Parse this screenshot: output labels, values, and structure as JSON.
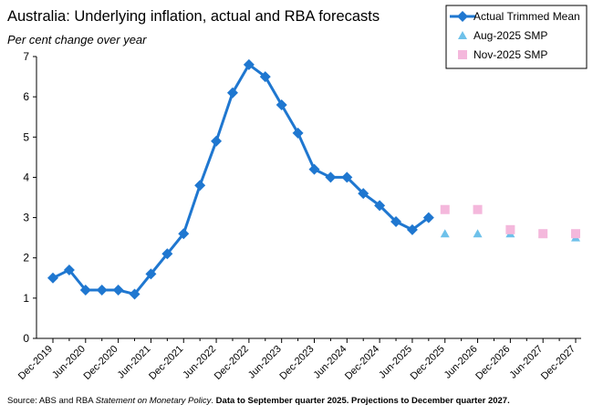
{
  "chart_data": {
    "type": "line",
    "title": "Australia: Underlying inflation, actual and RBA forecasts",
    "subtitle": "Per cent change over year",
    "source": [
      "Source: ABS and RBA ",
      "Statement on Monetary Policy",
      ". ",
      "Data to September quarter 2025. Projections to December quarter 2027."
    ],
    "categories": [
      "Dec-2019",
      null,
      "Jun-2020",
      null,
      "Dec-2020",
      null,
      "Jun-2021",
      null,
      "Dec-2021",
      null,
      "Jun-2022",
      null,
      "Dec-2022",
      null,
      "Jun-2023",
      null,
      "Dec-2023",
      null,
      "Jun-2024",
      null,
      "Dec-2024",
      null,
      "Jun-2025",
      null,
      "Dec-2025",
      null,
      "Jun-2026",
      null,
      "Dec-2026",
      null,
      "Jun-2027",
      null,
      "Dec-2027"
    ],
    "series": [
      {
        "name": "Actual Trimmed Mean",
        "color": "#1f77d0",
        "marker": "diamond",
        "line": true,
        "values": [
          1.5,
          1.7,
          1.2,
          1.2,
          1.2,
          1.1,
          1.6,
          2.1,
          2.6,
          3.8,
          4.9,
          6.1,
          6.8,
          6.5,
          5.8,
          5.1,
          4.2,
          4.0,
          4.0,
          3.6,
          3.3,
          2.9,
          2.7,
          3.0,
          null,
          null,
          null,
          null,
          null,
          null,
          null,
          null,
          null
        ]
      },
      {
        "name": "Aug-2025 SMP",
        "color": "#6ec1ea",
        "marker": "triangle",
        "line": false,
        "values": [
          null,
          null,
          null,
          null,
          null,
          null,
          null,
          null,
          null,
          null,
          null,
          null,
          null,
          null,
          null,
          null,
          null,
          null,
          null,
          null,
          null,
          null,
          null,
          null,
          2.6,
          null,
          2.6,
          null,
          2.6,
          null,
          2.6,
          null,
          2.5
        ]
      },
      {
        "name": "Nov-2025 SMP",
        "color": "#f4b8dc",
        "marker": "square",
        "line": false,
        "values": [
          null,
          null,
          null,
          null,
          null,
          null,
          null,
          null,
          null,
          null,
          null,
          null,
          null,
          null,
          null,
          null,
          null,
          null,
          null,
          null,
          null,
          null,
          null,
          null,
          3.2,
          null,
          3.2,
          null,
          2.7,
          null,
          2.6,
          null,
          2.6
        ]
      }
    ],
    "ylim": [
      0,
      7
    ],
    "yticks": [
      0,
      1,
      2,
      3,
      4,
      5,
      6,
      7
    ],
    "grid": false,
    "legend": "top-right"
  }
}
